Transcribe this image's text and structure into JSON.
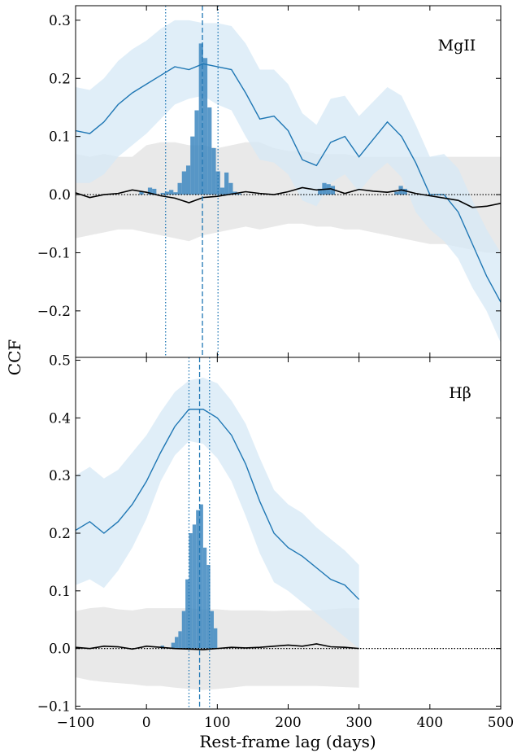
{
  "figure": {
    "ylabel": "CCF",
    "xlabel": "Rest-frame lag (days)"
  },
  "colors": {
    "ccf_line": "#1f77b4",
    "ccf_band": "#d6e8f5",
    "null_band": "#e1e1e1",
    "null_line": "#000000",
    "hist": "#3d87c0",
    "marker": "#1f77b4"
  },
  "chart_data": [
    {
      "type": "line",
      "panel": "top",
      "label": "MgII",
      "xlim": [
        -100,
        500
      ],
      "ylim": [
        -0.28,
        0.325
      ],
      "x_ticks": [
        -100,
        0,
        100,
        200,
        300,
        400,
        500
      ],
      "y_ticks": [
        -0.2,
        -0.1,
        0.0,
        0.1,
        0.2,
        0.3
      ],
      "y_tick_labels": [
        "−0.2",
        "−0.1",
        "0.0",
        "0.1",
        "0.2",
        "0.3"
      ],
      "x_tick_labels": [],
      "lag_median": 79,
      "lag_lower": 27,
      "lag_upper": 101,
      "ccf": {
        "x": [
          -100,
          -80,
          -60,
          -40,
          -20,
          0,
          20,
          40,
          60,
          80,
          100,
          120,
          140,
          160,
          180,
          200,
          220,
          240,
          260,
          280,
          300,
          320,
          340,
          360,
          380,
          400,
          420,
          440,
          460,
          480,
          500
        ],
        "y": [
          0.11,
          0.105,
          0.125,
          0.155,
          0.175,
          0.19,
          0.205,
          0.22,
          0.215,
          0.225,
          0.22,
          0.215,
          0.175,
          0.13,
          0.135,
          0.11,
          0.06,
          0.05,
          0.09,
          0.1,
          0.065,
          0.095,
          0.125,
          0.1,
          0.055,
          0.0,
          0.0,
          -0.03,
          -0.085,
          -0.14,
          -0.185
        ],
        "lower": [
          0.02,
          0.02,
          0.035,
          0.065,
          0.085,
          0.105,
          0.13,
          0.155,
          0.165,
          0.17,
          0.155,
          0.145,
          0.1,
          0.06,
          0.055,
          0.035,
          -0.01,
          -0.02,
          0.02,
          0.035,
          0.005,
          0.035,
          0.055,
          0.03,
          -0.03,
          -0.06,
          -0.08,
          -0.11,
          -0.16,
          -0.2,
          -0.255
        ],
        "upper": [
          0.185,
          0.18,
          0.2,
          0.23,
          0.25,
          0.265,
          0.285,
          0.3,
          0.3,
          0.295,
          0.295,
          0.29,
          0.26,
          0.215,
          0.215,
          0.19,
          0.14,
          0.12,
          0.165,
          0.17,
          0.135,
          0.16,
          0.185,
          0.17,
          0.12,
          0.065,
          0.07,
          0.045,
          -0.01,
          -0.06,
          -0.1
        ]
      },
      "null": {
        "x": [
          -100,
          -80,
          -60,
          -40,
          -20,
          0,
          20,
          40,
          60,
          80,
          100,
          120,
          140,
          160,
          180,
          200,
          220,
          240,
          260,
          280,
          300,
          320,
          340,
          360,
          380,
          400,
          420,
          440,
          460,
          480,
          500
        ],
        "y": [
          0.003,
          -0.005,
          0.0,
          0.002,
          0.008,
          0.004,
          -0.002,
          -0.006,
          -0.014,
          -0.005,
          -0.003,
          0.001,
          0.005,
          0.002,
          0.0,
          0.005,
          0.012,
          0.008,
          0.01,
          0.002,
          0.009,
          0.006,
          0.004,
          0.008,
          0.002,
          -0.002,
          -0.006,
          -0.01,
          -0.022,
          -0.02,
          -0.015
        ],
        "lower": [
          -0.075,
          -0.07,
          -0.065,
          -0.06,
          -0.06,
          -0.065,
          -0.07,
          -0.075,
          -0.08,
          -0.07,
          -0.065,
          -0.06,
          -0.055,
          -0.06,
          -0.055,
          -0.05,
          -0.05,
          -0.055,
          -0.055,
          -0.06,
          -0.06,
          -0.065,
          -0.07,
          -0.075,
          -0.08,
          -0.085,
          -0.085,
          -0.09,
          -0.095,
          -0.1,
          -0.1
        ],
        "upper": [
          0.07,
          0.065,
          0.07,
          0.065,
          0.065,
          0.085,
          0.09,
          0.09,
          0.085,
          0.085,
          0.08,
          0.085,
          0.09,
          0.09,
          0.08,
          0.075,
          0.075,
          0.07,
          0.07,
          0.07,
          0.065,
          0.065,
          0.065,
          0.065,
          0.065,
          0.065,
          0.065,
          0.065,
          0.065,
          0.065,
          0.065
        ]
      },
      "histogram": {
        "edges_start": -100,
        "bin_width": 6,
        "counts": [
          0.0,
          0.0,
          0.0,
          0.0,
          0.0,
          0.0,
          0.0,
          0.0,
          0.0,
          0.0,
          0.0,
          0.0,
          0.0,
          0.0,
          0.0,
          0.005,
          0.0,
          0.012,
          0.01,
          0.0,
          0.003,
          0.005,
          0.008,
          0.004,
          0.02,
          0.04,
          0.05,
          0.1,
          0.145,
          0.26,
          0.235,
          0.15,
          0.08,
          0.04,
          0.012,
          0.038,
          0.02,
          0.005,
          0.002,
          0.0,
          0.0,
          0.0,
          0.0,
          0.0,
          0.0,
          0.0,
          0.0,
          0.0,
          0.0,
          0.0,
          0.0,
          0.0,
          0.0,
          0.0,
          0.0,
          0.0,
          0.0,
          0.01,
          0.02,
          0.018,
          0.015,
          0.0,
          0.0,
          0.0,
          0.0,
          0.0,
          0.0,
          0.0,
          0.0,
          0.0,
          0.0,
          0.0,
          0.0,
          0.0,
          0.0,
          0.005,
          0.015,
          0.01,
          0.0,
          0.0,
          0.0,
          0.0,
          0.0,
          0.0,
          0.0,
          0.0,
          0.0,
          0.0,
          0.0,
          0.0,
          0.0,
          0.0,
          0.0,
          0.0,
          0.0,
          0.0,
          0.0,
          0.0,
          0.0,
          0.0
        ]
      }
    },
    {
      "type": "line",
      "panel": "bottom",
      "label": "Hβ",
      "xlim": [
        -100,
        500
      ],
      "ylim": [
        -0.105,
        0.505
      ],
      "x_ticks": [
        -100,
        0,
        100,
        200,
        300,
        400,
        500
      ],
      "x_tick_labels": [
        "−100",
        "0",
        "100",
        "200",
        "300",
        "400",
        "500"
      ],
      "y_ticks": [
        -0.1,
        0.0,
        0.1,
        0.2,
        0.3,
        0.4,
        0.5
      ],
      "y_tick_labels": [
        "−0.1",
        "0.0",
        "0.1",
        "0.2",
        "0.3",
        "0.4",
        "0.5"
      ],
      "lag_median": 75,
      "lag_lower": 60,
      "lag_upper": 89,
      "ccf": {
        "x": [
          -100,
          -80,
          -60,
          -40,
          -20,
          0,
          20,
          40,
          60,
          80,
          100,
          120,
          140,
          160,
          180,
          200,
          220,
          240,
          260,
          280,
          300
        ],
        "y": [
          0.205,
          0.22,
          0.2,
          0.22,
          0.25,
          0.29,
          0.34,
          0.385,
          0.415,
          0.415,
          0.4,
          0.37,
          0.32,
          0.255,
          0.2,
          0.175,
          0.16,
          0.14,
          0.12,
          0.11,
          0.085
        ],
        "lower": [
          0.11,
          0.12,
          0.105,
          0.135,
          0.175,
          0.225,
          0.29,
          0.335,
          0.36,
          0.355,
          0.33,
          0.29,
          0.23,
          0.165,
          0.115,
          0.1,
          0.08,
          0.06,
          0.04,
          0.02,
          0.0
        ],
        "upper": [
          0.3,
          0.315,
          0.295,
          0.31,
          0.34,
          0.37,
          0.41,
          0.445,
          0.465,
          0.47,
          0.46,
          0.43,
          0.39,
          0.33,
          0.275,
          0.25,
          0.235,
          0.21,
          0.19,
          0.17,
          0.145
        ]
      },
      "null": {
        "x": [
          -100,
          -80,
          -60,
          -40,
          -20,
          0,
          20,
          40,
          60,
          80,
          100,
          120,
          140,
          160,
          180,
          200,
          220,
          240,
          260,
          280,
          300
        ],
        "y": [
          0.002,
          0.0,
          0.004,
          0.003,
          -0.001,
          0.004,
          0.002,
          0.0,
          -0.001,
          -0.002,
          0.0,
          0.002,
          0.001,
          0.002,
          0.004,
          0.006,
          0.004,
          0.008,
          0.003,
          0.002,
          0.0
        ],
        "lower": [
          -0.05,
          -0.055,
          -0.058,
          -0.06,
          -0.062,
          -0.065,
          -0.065,
          -0.068,
          -0.07,
          -0.072,
          -0.07,
          -0.068,
          -0.065,
          -0.065,
          -0.065,
          -0.065,
          -0.065,
          -0.065,
          -0.066,
          -0.067,
          -0.068
        ],
        "upper": [
          0.065,
          0.07,
          0.072,
          0.068,
          0.066,
          0.07,
          0.07,
          0.07,
          0.07,
          0.068,
          0.068,
          0.066,
          0.066,
          0.066,
          0.065,
          0.066,
          0.066,
          0.066,
          0.068,
          0.07,
          0.07
        ]
      },
      "histogram": {
        "edges_start": -100,
        "bin_width": 5,
        "counts": [
          0.0,
          0.0,
          0.0,
          0.0,
          0.0,
          0.0,
          0.0,
          0.0,
          0.0,
          0.0,
          0.0,
          0.0,
          0.0,
          0.0,
          0.0,
          0.0,
          0.0,
          0.0,
          0.0,
          0.0,
          0.0,
          0.0,
          0.0,
          0.0,
          0.005,
          0.0,
          0.0,
          0.01,
          0.02,
          0.03,
          0.065,
          0.12,
          0.2,
          0.215,
          0.24,
          0.25,
          0.175,
          0.145,
          0.065,
          0.035,
          0.0,
          0.0,
          0.0,
          0.0,
          0.0
        ]
      }
    }
  ]
}
